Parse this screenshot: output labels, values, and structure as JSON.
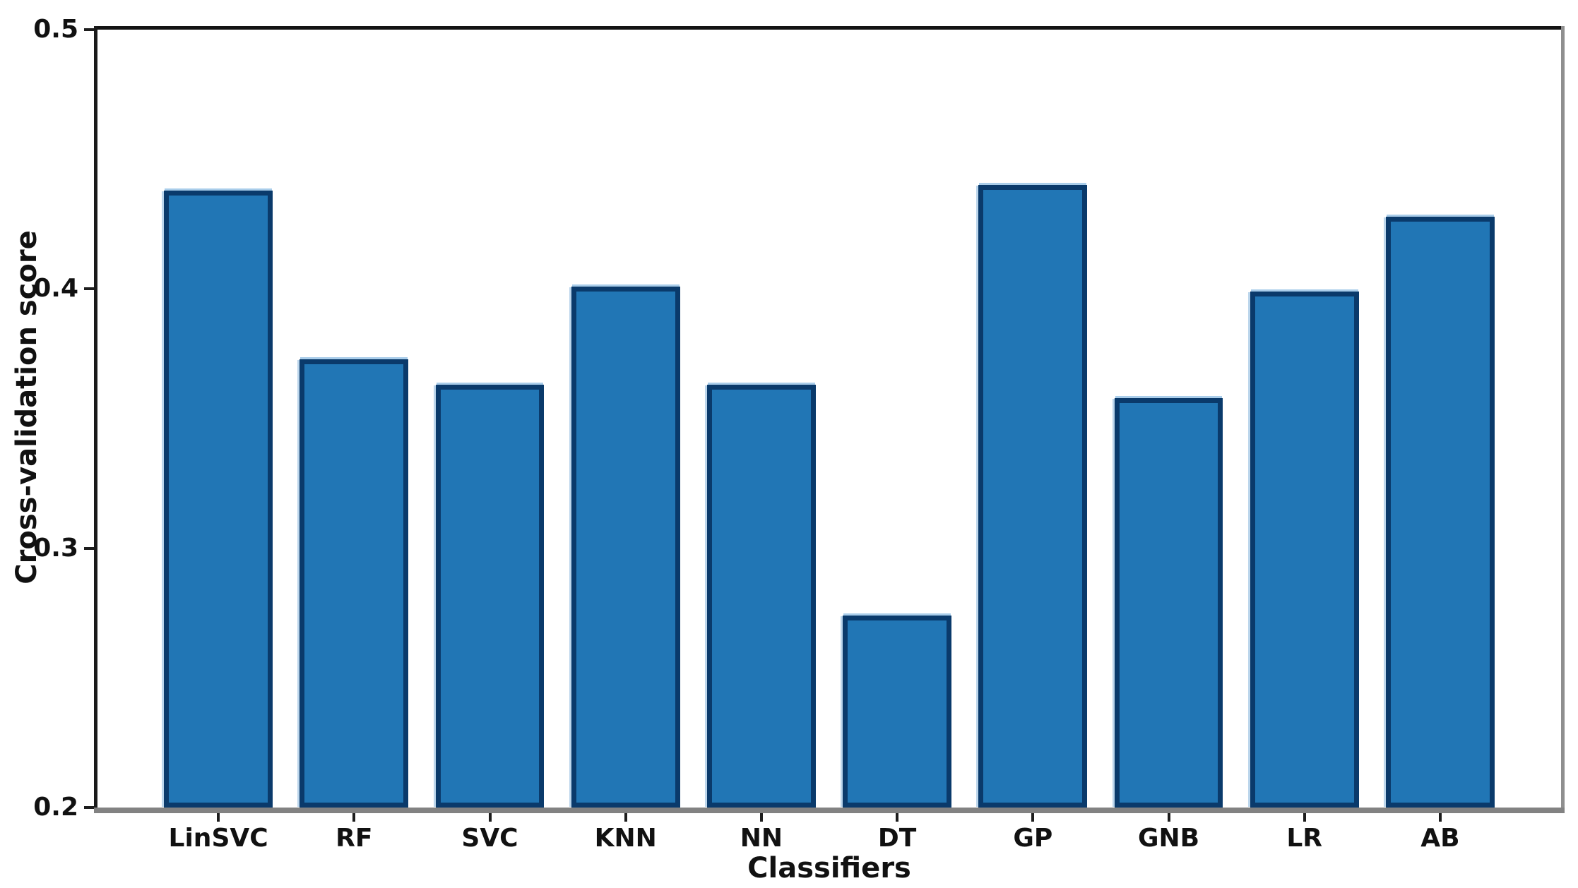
{
  "chart_data": {
    "type": "bar",
    "title": "",
    "xlabel": "Classifiers",
    "ylabel": "Cross-validation score",
    "categories": [
      "LinSVC",
      "RF",
      "SVC",
      "KNN",
      "NN",
      "DT",
      "GP",
      "GNB",
      "LR",
      "AB"
    ],
    "values": [
      0.438,
      0.373,
      0.363,
      0.401,
      0.363,
      0.274,
      0.44,
      0.358,
      0.399,
      0.428
    ],
    "ylim": [
      0.2,
      0.5
    ],
    "yticks": [
      "0.2",
      "0.3",
      "0.4",
      "0.5"
    ],
    "xlim_pad_slots": 0.49,
    "bar_width_slots": 0.8,
    "grid": false,
    "legend_position": "none",
    "colors": {
      "bar_fill": "#2176b5",
      "bar_edge": "#0a3a6b",
      "axis_text": "#111111"
    }
  }
}
